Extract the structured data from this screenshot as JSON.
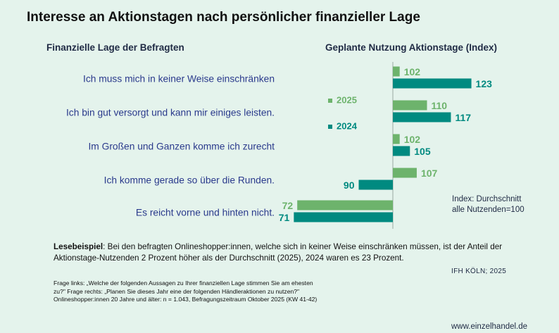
{
  "title": "Interesse an Aktionstagen nach persönlicher finanzieller Lage",
  "left_header": "Finanzielle Lage der Befragten",
  "right_header": "Geplante Nutzung Aktionstage (Index)",
  "chart_data": {
    "type": "bar",
    "orientation": "horizontal",
    "baseline": 100,
    "categories": [
      "Ich muss mich in keiner Weise einschränken",
      "Ich bin gut versorgt und kann mir einiges leisten.",
      "Im Großen und Ganzen komme ich zurecht",
      "Ich komme gerade so über die Runden.",
      "Es reicht vorne und hinten nicht."
    ],
    "series": [
      {
        "name": "2025",
        "color": "#6db36c",
        "values": [
          102,
          110,
          102,
          107,
          72
        ]
      },
      {
        "name": "2024",
        "color": "#008a80",
        "values": [
          123,
          117,
          105,
          90,
          71
        ]
      }
    ],
    "legend_position": "middle-left of bars",
    "xlim": [
      70,
      127
    ]
  },
  "index_note_lines": [
    "Index: Durchschnitt",
    "alle Nutzenden=100"
  ],
  "reading_example": {
    "label": "Lesebeispiel",
    "text": ": Bei den befragten Onlineshopper:innen, welche sich in keiner Weise einschränken müssen, ist der Anteil der Aktionstage-Nutzenden 2 Prozent höher als der Durchschnitt (2025), 2024 waren es 23 Prozent."
  },
  "source": "IFH KÖLN; 2025",
  "footnote_lines": [
    "Frage links: „Welche der folgenden Aussagen zu Ihrer finanziellen Lage stimmen Sie am ehesten",
    "zu?\" Frage rechts: „Planen Sie dieses Jahr eine der folgenden Händleraktionen zu nutzen?\"",
    "Onlineshopper:innen 20 Jahre und älter: n = 1.043, Befragungszeitraum Oktober 2025 (KW 41-42)"
  ],
  "website": "www.einzelhandel.de"
}
